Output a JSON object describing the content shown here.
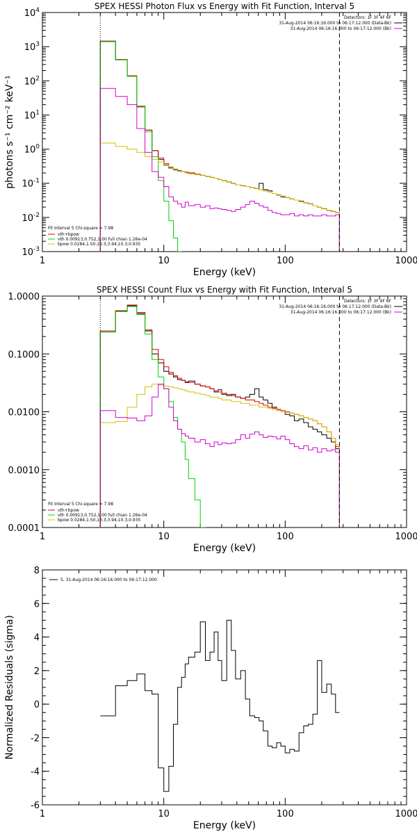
{
  "colors": {
    "data": "#000000",
    "total": "#e00000",
    "vth": "#00d000",
    "bpow": "#d4c000",
    "bk": "#d000d0"
  },
  "chart_data": [
    {
      "type": "line",
      "title": "SPEX HESSI Photon Flux vs Energy with Fit Function, Interval 5",
      "xlabel": "Energy (keV)",
      "ylabel": "photons s⁻¹ cm⁻² keV⁻¹",
      "xscale": "log",
      "yscale": "log",
      "xlim": [
        1,
        1000
      ],
      "ylim": [
        0.001,
        10000
      ],
      "xticks": [
        {
          "v": 1,
          "l": "1"
        },
        {
          "v": 10,
          "l": "10"
        },
        {
          "v": 100,
          "l": "100"
        },
        {
          "v": 1000,
          "l": "1000"
        }
      ],
      "yticks": [
        {
          "v": 0.001,
          "base": "10",
          "exp": "-3"
        },
        {
          "v": 0.01,
          "base": "10",
          "exp": "-2"
        },
        {
          "v": 0.1,
          "base": "10",
          "exp": "-1"
        },
        {
          "v": 1,
          "base": "10",
          "exp": "0"
        },
        {
          "v": 10,
          "base": "10",
          "exp": "1"
        },
        {
          "v": 100,
          "base": "10",
          "exp": "2"
        },
        {
          "v": 1000,
          "base": "10",
          "exp": "3"
        },
        {
          "v": 10000,
          "base": "10",
          "exp": "4"
        }
      ],
      "vlines": [
        {
          "x": 3,
          "style": "dotted"
        },
        {
          "x": 280,
          "style": "dashed"
        }
      ],
      "legend_tr": [
        "Detectors: 1F 3F 4F 6F",
        "31-Aug-2014 06:16:16.000 to 06:17:12.000 (Data-Bk)",
        "31-Aug-2014 06:16:16.000 to 06:17:12.000 (Bk)"
      ],
      "legend_tr_colors": [
        "",
        "data",
        "bk"
      ],
      "legend_bl_header": "Fit Interval 5   Chi-square = 7.98",
      "legend_bl": [
        {
          "label": "vth+bpow",
          "color": "total"
        },
        {
          "label": "vth 0.00913,0.752,1.00   full chian 1.26e-04",
          "color": "vth"
        },
        {
          "label": "bpow 0.0284,1.50,10.3,3.94,10.3,0.935",
          "color": "bpow"
        }
      ],
      "edges": [
        3,
        4,
        5,
        6,
        7,
        8,
        9,
        10,
        11,
        12,
        13,
        14,
        15,
        16,
        18,
        20,
        22,
        24,
        26,
        28,
        30,
        33,
        36,
        39,
        43,
        47,
        51,
        56,
        61,
        66,
        72,
        78,
        85,
        92,
        100,
        109,
        119,
        130,
        142,
        155,
        169,
        184,
        200,
        220,
        240,
        260,
        280
      ],
      "series": [
        {
          "name": "",
          "color": "data",
          "values": [
            1450,
            420,
            140,
            18,
            3.6,
            0.9,
            0.5,
            0.34,
            0.28,
            0.25,
            0.23,
            0.22,
            0.21,
            0.2,
            0.185,
            0.17,
            0.16,
            0.15,
            0.14,
            0.13,
            0.12,
            0.11,
            0.1,
            0.09,
            0.085,
            0.08,
            0.075,
            0.07,
            0.1,
            0.065,
            0.06,
            0.05,
            0.045,
            0.04,
            0.038,
            0.035,
            0.032,
            0.03,
            0.027,
            0.025,
            0.022,
            0.02,
            0.018,
            0.016,
            0.015,
            0.014
          ]
        },
        {
          "name": "",
          "color": "total",
          "values": [
            1450,
            420,
            140,
            18,
            3.6,
            0.9,
            0.55,
            0.38,
            0.3,
            0.26,
            0.24,
            0.22,
            0.21,
            0.2,
            0.185,
            0.17,
            0.16,
            0.15,
            0.14,
            0.13,
            0.12,
            0.11,
            0.1,
            0.09,
            0.085,
            0.08,
            0.075,
            0.07,
            0.065,
            0.06,
            0.055,
            0.05,
            0.046,
            0.042,
            0.038,
            0.035,
            0.032,
            0.029,
            0.027,
            0.025,
            0.022,
            0.02,
            0.018,
            0.016,
            0.015,
            0.014
          ]
        },
        {
          "name": "",
          "color": "vth",
          "values": [
            1400,
            410,
            135,
            17,
            3.2,
            0.6,
            0.12,
            0.03,
            0.008,
            0.0025,
            0.0008
          ]
        },
        {
          "name": "",
          "color": "bpow",
          "values": [
            1.5,
            1.2,
            1.0,
            0.8,
            0.6,
            0.5,
            0.42,
            0.35,
            0.3,
            0.26,
            0.24,
            0.22,
            0.2,
            0.19,
            0.18,
            0.17,
            0.16,
            0.15,
            0.14,
            0.13,
            0.12,
            0.11,
            0.1,
            0.09,
            0.085,
            0.08,
            0.075,
            0.07,
            0.065,
            0.06,
            0.055,
            0.05,
            0.046,
            0.042,
            0.038,
            0.035,
            0.032,
            0.029,
            0.027,
            0.025,
            0.022,
            0.02,
            0.018,
            0.016,
            0.015,
            0.014
          ]
        },
        {
          "name": "",
          "color": "bk",
          "values": [
            60,
            35,
            20,
            4,
            0.8,
            0.22,
            0.15,
            0.08,
            0.04,
            0.03,
            0.025,
            0.02,
            0.028,
            0.022,
            0.024,
            0.02,
            0.022,
            0.018,
            0.019,
            0.018,
            0.017,
            0.016,
            0.015,
            0.017,
            0.02,
            0.024,
            0.03,
            0.026,
            0.022,
            0.02,
            0.016,
            0.014,
            0.013,
            0.012,
            0.012,
            0.013,
            0.011,
            0.012,
            0.011,
            0.012,
            0.011,
            0.011,
            0.012,
            0.011,
            0.011,
            0.012
          ]
        }
      ]
    },
    {
      "type": "line",
      "title": "SPEX HESSI Count Flux vs Energy with Fit Function, Interval 5",
      "xlabel": "Energy (keV)",
      "ylabel": "",
      "xscale": "log",
      "yscale": "log",
      "xlim": [
        1,
        1000
      ],
      "ylim": [
        0.0001,
        1
      ],
      "xticks": [
        {
          "v": 1,
          "l": "1"
        },
        {
          "v": 10,
          "l": "10"
        },
        {
          "v": 100,
          "l": "100"
        },
        {
          "v": 1000,
          "l": "1000"
        }
      ],
      "yticks": [
        {
          "v": 0.0001,
          "l": "0.0001"
        },
        {
          "v": 0.001,
          "l": "0.0010"
        },
        {
          "v": 0.01,
          "l": "0.0100"
        },
        {
          "v": 0.1,
          "l": "0.1000"
        },
        {
          "v": 1,
          "l": "1.0000"
        }
      ],
      "vlines": [
        {
          "x": 3,
          "style": "dotted"
        },
        {
          "x": 280,
          "style": "dashed"
        }
      ],
      "legend_tr": [
        "Detectors: 1F 3F 4F 6F",
        "31-Aug-2014 06:16:16.000 to 06:17:12.000 (Data-Bk)",
        "31-Aug-2014 06:16:16.000 to 06:17:12.000 (Bk)"
      ],
      "legend_tr_colors": [
        "",
        "data",
        "bk"
      ],
      "legend_bl_header": "Fit Interval 5   Chi-square = 7.98",
      "legend_bl": [
        {
          "label": "vth+bpow",
          "color": "total"
        },
        {
          "label": "vth 0.00913,0.752,1.00   full chian 1.26e-04",
          "color": "vth"
        },
        {
          "label": "bpow 0.0284,1.50,10.3,3.94,10.3,0.935",
          "color": "bpow"
        }
      ],
      "edges": [
        3,
        4,
        5,
        6,
        7,
        8,
        9,
        10,
        11,
        12,
        13,
        14,
        15,
        16,
        18,
        20,
        22,
        24,
        26,
        28,
        30,
        33,
        36,
        39,
        43,
        47,
        51,
        56,
        61,
        66,
        72,
        78,
        85,
        92,
        100,
        109,
        119,
        130,
        142,
        155,
        169,
        184,
        200,
        220,
        240,
        260,
        280
      ],
      "series": [
        {
          "name": "",
          "color": "data",
          "values": [
            0.24,
            0.55,
            0.68,
            0.5,
            0.25,
            0.1,
            0.07,
            0.05,
            0.045,
            0.04,
            0.036,
            0.035,
            0.032,
            0.034,
            0.03,
            0.028,
            0.027,
            0.025,
            0.022,
            0.024,
            0.02,
            0.019,
            0.02,
            0.018,
            0.017,
            0.018,
            0.02,
            0.025,
            0.018,
            0.016,
            0.014,
            0.012,
            0.011,
            0.01,
            0.009,
            0.0085,
            0.007,
            0.0075,
            0.0065,
            0.0055,
            0.005,
            0.0045,
            0.004,
            0.0035,
            0.003,
            0.0023
          ]
        },
        {
          "name": "",
          "color": "total",
          "values": [
            0.25,
            0.56,
            0.7,
            0.52,
            0.26,
            0.12,
            0.08,
            0.06,
            0.048,
            0.042,
            0.038,
            0.035,
            0.033,
            0.032,
            0.03,
            0.028,
            0.027,
            0.025,
            0.023,
            0.022,
            0.021,
            0.02,
            0.019,
            0.018,
            0.017,
            0.016,
            0.016,
            0.015,
            0.014,
            0.013,
            0.012,
            0.0115,
            0.011,
            0.0105,
            0.01,
            0.0095,
            0.009,
            0.0085,
            0.008,
            0.0075,
            0.007,
            0.0062,
            0.0055,
            0.0045,
            0.0035,
            0.0025
          ]
        },
        {
          "name": "",
          "color": "vth",
          "values": [
            0.24,
            0.54,
            0.66,
            0.48,
            0.22,
            0.08,
            0.04,
            0.025,
            0.015,
            0.008,
            0.005,
            0.003,
            0.0015,
            0.0007,
            0.0003,
            0.0001
          ]
        },
        {
          "name": "",
          "color": "bpow",
          "values": [
            0.0065,
            0.0068,
            0.012,
            0.02,
            0.027,
            0.03,
            0.029,
            0.028,
            0.027,
            0.026,
            0.025,
            0.024,
            0.023,
            0.022,
            0.021,
            0.02,
            0.019,
            0.018,
            0.018,
            0.017,
            0.016,
            0.016,
            0.015,
            0.015,
            0.014,
            0.014,
            0.013,
            0.013,
            0.012,
            0.012,
            0.0115,
            0.011,
            0.0105,
            0.01,
            0.0098,
            0.0095,
            0.009,
            0.0085,
            0.008,
            0.0075,
            0.007,
            0.0062,
            0.0055,
            0.0045,
            0.0035,
            0.0027
          ]
        },
        {
          "name": "",
          "color": "bk",
          "values": [
            0.0105,
            0.008,
            0.0078,
            0.007,
            0.0085,
            0.018,
            0.03,
            0.025,
            0.012,
            0.007,
            0.005,
            0.0042,
            0.0038,
            0.0035,
            0.003,
            0.0033,
            0.0028,
            0.0025,
            0.003,
            0.0027,
            0.0029,
            0.0028,
            0.0029,
            0.0033,
            0.004,
            0.0035,
            0.0041,
            0.0045,
            0.004,
            0.0036,
            0.0038,
            0.0037,
            0.0034,
            0.0038,
            0.0033,
            0.0028,
            0.0025,
            0.0023,
            0.0026,
            0.0022,
            0.0024,
            0.002,
            0.0023,
            0.0021,
            0.0022,
            0.002
          ]
        }
      ]
    },
    {
      "type": "line",
      "title": "",
      "xlabel": "Energy (keV)",
      "ylabel": "Normalized Residuals (sigma)",
      "xscale": "log",
      "yscale": "linear",
      "xlim": [
        1,
        1000
      ],
      "ylim": [
        -6,
        8
      ],
      "xticks": [
        {
          "v": 1,
          "l": "1"
        },
        {
          "v": 10,
          "l": "10"
        },
        {
          "v": 100,
          "l": "100"
        },
        {
          "v": 1000,
          "l": "1000"
        }
      ],
      "yticks": [
        {
          "v": -6,
          "l": "-6"
        },
        {
          "v": -4,
          "l": "-4"
        },
        {
          "v": -2,
          "l": "-2"
        },
        {
          "v": 0,
          "l": "0"
        },
        {
          "v": 2,
          "l": "2"
        },
        {
          "v": 4,
          "l": "4"
        },
        {
          "v": 6,
          "l": "6"
        },
        {
          "v": 8,
          "l": "8"
        }
      ],
      "vlines": [],
      "legend_tl": [
        {
          "label": "5, 31-Aug-2014 06:16:16.000 to 06:17:12.000",
          "color": "data"
        }
      ],
      "edges": [
        3,
        4,
        5,
        6,
        7,
        8,
        9,
        10,
        11,
        12,
        13,
        14,
        15,
        16,
        18,
        20,
        22,
        24,
        26,
        28,
        30,
        33,
        36,
        39,
        43,
        47,
        51,
        56,
        61,
        66,
        72,
        78,
        85,
        92,
        100,
        109,
        119,
        130,
        142,
        155,
        169,
        184,
        200,
        220,
        240,
        260,
        280
      ],
      "series": [
        {
          "name": "",
          "color": "data",
          "values": [
            -0.7,
            1.1,
            1.4,
            1.8,
            0.8,
            0.6,
            -3.8,
            -5.2,
            -3.7,
            -1.2,
            1.0,
            1.6,
            2.4,
            2.8,
            3.1,
            4.9,
            2.6,
            3.1,
            4.3,
            2.6,
            1.4,
            5.0,
            3.2,
            1.5,
            2.0,
            0.3,
            -0.7,
            -0.8,
            -1.0,
            -1.6,
            -2.5,
            -2.6,
            -2.3,
            -2.5,
            -2.9,
            -2.7,
            -2.8,
            -1.7,
            -1.3,
            -1.2,
            -0.6,
            2.6,
            0.7,
            1.2,
            0.6,
            -0.5
          ]
        }
      ]
    }
  ]
}
